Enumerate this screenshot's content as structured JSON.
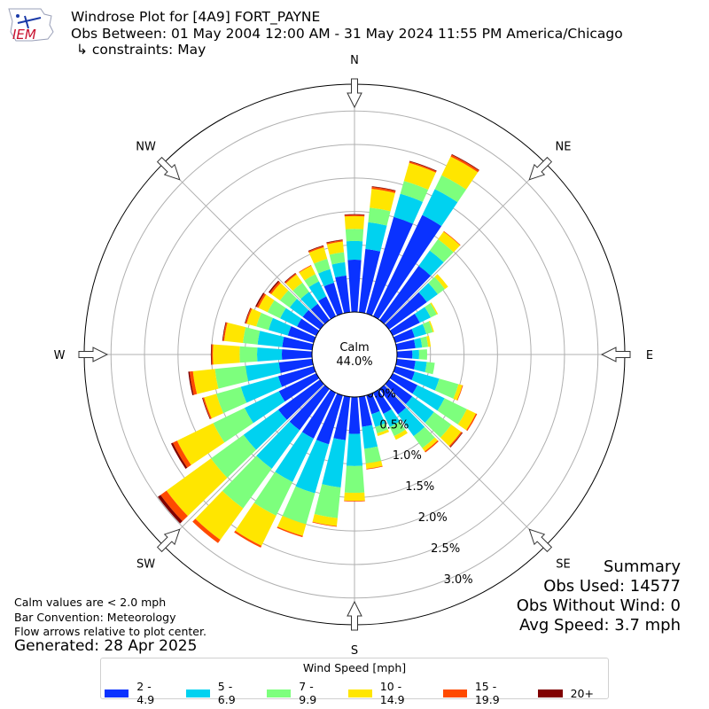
{
  "header": {
    "logo_text": "IEM",
    "title": "Windrose Plot for [4A9] FORT_PAYNE",
    "subtitle": "Obs Between: 01 May 2004 12:00 AM - 31 May 2024 11:55 PM America/Chicago",
    "constraints": "↳ constraints: May"
  },
  "directions": [
    "N",
    "NE",
    "E",
    "SE",
    "S",
    "SW",
    "W",
    "NW"
  ],
  "calm": {
    "label": "Calm",
    "value": "44.0%"
  },
  "notes": {
    "calm_threshold": "Calm values are < 2.0 mph",
    "bar_convention": "Bar Convention: Meteorology",
    "flow_arrows": "Flow arrows relative to plot center.",
    "generated": "Generated: 28 Apr 2025"
  },
  "summary": {
    "title": "Summary",
    "obs_used": "Obs Used: 14577",
    "obs_without_wind": "Obs Without Wind: 0",
    "avg_speed": "Avg Speed: 3.7 mph"
  },
  "legend": {
    "title": "Wind Speed [mph]",
    "items": [
      {
        "label": "2 - 4.9",
        "color": "#0a32ff"
      },
      {
        "label": "5 - 6.9",
        "color": "#00d2f0"
      },
      {
        "label": "7 - 9.9",
        "color": "#7dff7d"
      },
      {
        "label": "10 - 14.9",
        "color": "#ffe600"
      },
      {
        "label": "15 - 19.9",
        "color": "#ff4a00"
      },
      {
        "label": "20+",
        "color": "#800000"
      }
    ]
  },
  "chart_data": {
    "type": "windrose",
    "radial_tick_labels": [
      "0.0%",
      "0.5%",
      "1.0%",
      "1.5%",
      "2.0%",
      "2.5%",
      "3.0%"
    ],
    "radial_ticks": [
      0,
      0.5,
      1.0,
      1.5,
      2.0,
      2.5,
      3.0
    ],
    "rmax": 3.4,
    "sector_centers_deg": [
      0,
      10,
      20,
      30,
      40,
      50,
      60,
      70,
      80,
      90,
      100,
      110,
      120,
      130,
      140,
      150,
      160,
      170,
      180,
      190,
      200,
      210,
      220,
      230,
      240,
      250,
      260,
      270,
      280,
      290,
      300,
      310,
      320,
      330,
      340,
      350
    ],
    "speed_bins": [
      "2 - 4.9",
      "5 - 6.9",
      "7 - 9.9",
      "10 - 14.9",
      "15 - 19.9",
      "20+"
    ],
    "sectors": [
      [
        0.78,
        0.28,
        0.18,
        0.19,
        0.02,
        0.01
      ],
      [
        0.95,
        0.4,
        0.22,
        0.28,
        0.03,
        0.01
      ],
      [
        1.5,
        0.36,
        0.2,
        0.28,
        0.02,
        0.01
      ],
      [
        1.68,
        0.43,
        0.23,
        0.31,
        0.03,
        0.01
      ],
      [
        1.0,
        0.28,
        0.21,
        0.14,
        0.01,
        0.0
      ],
      [
        0.7,
        0.2,
        0.13,
        0.06,
        0.0,
        0.0
      ],
      [
        0.45,
        0.18,
        0.1,
        0.02,
        0.0,
        0.0
      ],
      [
        0.3,
        0.18,
        0.1,
        0.02,
        0.0,
        0.0
      ],
      [
        0.28,
        0.1,
        0.09,
        0.04,
        0.0,
        0.0
      ],
      [
        0.23,
        0.1,
        0.12,
        0.0,
        0.0,
        0.0
      ],
      [
        0.28,
        0.17,
        0.12,
        0.0,
        0.0,
        0.0
      ],
      [
        0.3,
        0.38,
        0.3,
        0.06,
        0.01,
        0.0
      ],
      [
        0.41,
        0.45,
        0.37,
        0.15,
        0.02,
        0.0
      ],
      [
        0.43,
        0.4,
        0.32,
        0.18,
        0.02,
        0.01
      ],
      [
        0.47,
        0.4,
        0.22,
        0.06,
        0.02,
        0.0
      ],
      [
        0.35,
        0.22,
        0.15,
        0.06,
        0.0,
        0.0
      ],
      [
        0.29,
        0.2,
        0.1,
        0.04,
        0.0,
        0.0
      ],
      [
        0.45,
        0.33,
        0.22,
        0.08,
        0.01,
        0.0
      ],
      [
        0.55,
        0.48,
        0.4,
        0.12,
        0.01,
        0.0
      ],
      [
        0.65,
        0.71,
        0.46,
        0.12,
        0.01,
        0.0
      ],
      [
        0.76,
        0.76,
        0.48,
        0.18,
        0.02,
        0.0
      ],
      [
        0.76,
        0.72,
        0.56,
        0.5,
        0.03,
        0.0
      ],
      [
        0.76,
        0.71,
        0.73,
        0.58,
        0.06,
        0.0
      ],
      [
        0.77,
        0.64,
        0.6,
        0.82,
        0.11,
        0.05
      ],
      [
        0.62,
        0.57,
        0.52,
        0.6,
        0.07,
        0.03
      ],
      [
        0.55,
        0.58,
        0.38,
        0.19,
        0.02,
        0.01
      ],
      [
        0.5,
        0.5,
        0.46,
        0.33,
        0.05,
        0.02
      ],
      [
        0.45,
        0.37,
        0.26,
        0.4,
        0.02,
        0.01
      ],
      [
        0.45,
        0.37,
        0.22,
        0.28,
        0.02,
        0.01
      ],
      [
        0.4,
        0.3,
        0.19,
        0.15,
        0.02,
        0.01
      ],
      [
        0.32,
        0.28,
        0.21,
        0.15,
        0.03,
        0.02
      ],
      [
        0.32,
        0.24,
        0.18,
        0.16,
        0.03,
        0.02
      ],
      [
        0.3,
        0.22,
        0.17,
        0.15,
        0.02,
        0.01
      ],
      [
        0.33,
        0.25,
        0.12,
        0.14,
        0.01,
        0.0
      ],
      [
        0.48,
        0.21,
        0.16,
        0.18,
        0.02,
        0.01
      ],
      [
        0.55,
        0.2,
        0.15,
        0.16,
        0.02,
        0.01
      ]
    ]
  }
}
